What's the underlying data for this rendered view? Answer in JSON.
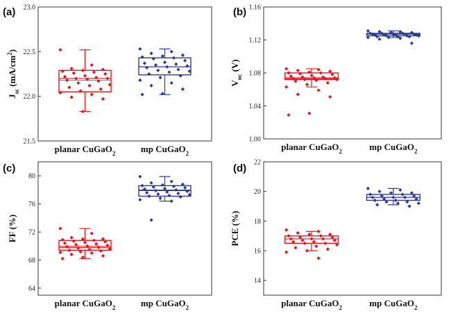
{
  "colors": {
    "planar": "#e8131b",
    "mp": "#2b3a96"
  },
  "chart_data": [
    {
      "panel": "(a)",
      "type": "scatter",
      "ylabel": "J_sc (mA/cm^2)",
      "ylabel_parts": {
        "main": "J",
        "sub": "sc",
        "unit": " (mA/cm",
        "sup": "2",
        "close": ")"
      },
      "ylim": [
        21.5,
        23.0
      ],
      "yticks": [
        "21.5",
        "22.0",
        "22.5",
        "23.0"
      ],
      "categories": [
        "planar CuGaO2",
        "mp CuGaO2"
      ],
      "category_parts": [
        {
          "main": "planar CuGaO",
          "sub": "2"
        },
        {
          "main": "mp CuGaO",
          "sub": "2"
        }
      ],
      "boxes": [
        {
          "q1": 22.05,
          "median": 22.2,
          "q3": 22.29,
          "mean": 22.18,
          "whisker_low": 21.83,
          "whisker_high": 22.52
        },
        {
          "q1": 22.24,
          "median": 22.33,
          "q3": 22.43,
          "mean": 22.33,
          "whisker_low": 22.02,
          "whisker_high": 22.53
        }
      ],
      "series": [
        {
          "values": [
            22.52,
            22.35,
            22.31,
            22.3,
            22.29,
            22.28,
            22.27,
            22.26,
            22.25,
            22.23,
            22.22,
            22.21,
            22.2,
            22.2,
            22.19,
            22.18,
            22.17,
            22.15,
            22.13,
            22.12,
            22.1,
            22.08,
            22.06,
            22.04,
            22.02,
            21.99,
            21.97,
            21.83
          ]
        },
        {
          "values": [
            22.53,
            22.5,
            22.48,
            22.46,
            22.45,
            22.44,
            22.43,
            22.42,
            22.4,
            22.38,
            22.37,
            22.36,
            22.35,
            22.34,
            22.33,
            22.32,
            22.3,
            22.29,
            22.28,
            22.27,
            22.25,
            22.23,
            22.21,
            22.18,
            22.15,
            22.12,
            22.08,
            22.03,
            22.02
          ]
        }
      ]
    },
    {
      "panel": "(b)",
      "type": "scatter",
      "ylabel": "V_oc (V)",
      "ylabel_parts": {
        "main": "V",
        "sub": "oc",
        "unit": " (V)",
        "sup": "",
        "close": ""
      },
      "ylim": [
        1.0,
        1.16
      ],
      "yticks": [
        "1.00",
        "1.04",
        "1.08",
        "1.12",
        "1.16"
      ],
      "categories": [
        "planar CuGaO2",
        "mp CuGaO2"
      ],
      "category_parts": [
        {
          "main": "planar CuGaO",
          "sub": "2"
        },
        {
          "main": "mp CuGaO",
          "sub": "2"
        }
      ],
      "boxes": [
        {
          "q1": 1.072,
          "median": 1.074,
          "q3": 1.08,
          "mean": 1.073,
          "whisker_low": 1.063,
          "whisker_high": 1.085
        },
        {
          "q1": 1.125,
          "median": 1.127,
          "q3": 1.128,
          "mean": 1.127,
          "whisker_low": 1.123,
          "whisker_high": 1.131
        }
      ],
      "series": [
        {
          "values": [
            1.085,
            1.084,
            1.083,
            1.082,
            1.081,
            1.08,
            1.08,
            1.079,
            1.078,
            1.077,
            1.076,
            1.075,
            1.075,
            1.074,
            1.074,
            1.073,
            1.073,
            1.072,
            1.072,
            1.071,
            1.07,
            1.068,
            1.066,
            1.063,
            1.059,
            1.054,
            1.051,
            1.031,
            1.029
          ]
        },
        {
          "values": [
            1.131,
            1.13,
            1.13,
            1.129,
            1.129,
            1.128,
            1.128,
            1.128,
            1.127,
            1.127,
            1.127,
            1.127,
            1.126,
            1.126,
            1.126,
            1.126,
            1.125,
            1.125,
            1.125,
            1.124,
            1.124,
            1.124,
            1.123,
            1.123,
            1.122,
            1.121,
            1.116
          ]
        }
      ]
    },
    {
      "panel": "(c)",
      "type": "scatter",
      "ylabel": "FF (%)",
      "ylabel_parts": {
        "main": "FF (%)",
        "sub": "",
        "unit": "",
        "sup": "",
        "close": ""
      },
      "ylim": [
        63,
        82
      ],
      "yticks": [
        "64",
        "68",
        "72",
        "76",
        "80"
      ],
      "categories": [
        "planar CuGaO2",
        "mp CuGaO2"
      ],
      "category_parts": [
        {
          "main": "planar CuGaO",
          "sub": "2"
        },
        {
          "main": "mp CuGaO",
          "sub": "2"
        }
      ],
      "boxes": [
        {
          "q1": 69.4,
          "median": 69.8,
          "q3": 70.8,
          "mean": 70.0,
          "whisker_low": 68.2,
          "whisker_high": 72.5
        },
        {
          "q1": 77.1,
          "median": 77.9,
          "q3": 78.6,
          "mean": 78.0,
          "whisker_low": 76.4,
          "whisker_high": 79.9
        }
      ],
      "series": [
        {
          "values": [
            72.5,
            71.8,
            71.2,
            71.0,
            71.0,
            70.9,
            70.8,
            70.7,
            70.6,
            70.5,
            70.4,
            70.3,
            70.2,
            70.1,
            70.0,
            69.9,
            69.8,
            69.7,
            69.6,
            69.5,
            69.4,
            69.3,
            69.2,
            69.1,
            69.0,
            68.8,
            68.6,
            68.4,
            68.2
          ]
        },
        {
          "values": [
            79.9,
            79.2,
            79.0,
            78.8,
            78.7,
            78.6,
            78.5,
            78.4,
            78.3,
            78.2,
            78.1,
            78.0,
            77.9,
            77.8,
            77.7,
            77.6,
            77.5,
            77.4,
            77.3,
            77.2,
            77.1,
            77.0,
            76.8,
            76.6,
            76.4,
            73.7
          ]
        }
      ]
    },
    {
      "panel": "(d)",
      "type": "scatter",
      "ylabel": "PCE (%)",
      "ylabel_parts": {
        "main": "PCE (%)",
        "sub": "",
        "unit": "",
        "sup": "",
        "close": ""
      },
      "ylim": [
        13,
        22
      ],
      "yticks": [
        "14",
        "16",
        "18",
        "20",
        "22"
      ],
      "categories": [
        "planar CuGaO2",
        "mp CuGaO2"
      ],
      "category_parts": [
        {
          "main": "planar CuGaO",
          "sub": "2"
        },
        {
          "main": "mp CuGaO",
          "sub": "2"
        }
      ],
      "boxes": [
        {
          "q1": 16.5,
          "median": 16.8,
          "q3": 17.0,
          "mean": 16.8,
          "whisker_low": 16.0,
          "whisker_high": 17.3
        },
        {
          "q1": 19.4,
          "median": 19.6,
          "q3": 19.8,
          "mean": 19.6,
          "whisker_low": 19.1,
          "whisker_high": 20.2
        }
      ],
      "series": [
        {
          "values": [
            17.4,
            17.3,
            17.2,
            17.1,
            17.1,
            17.0,
            17.0,
            16.9,
            16.9,
            16.8,
            16.8,
            16.8,
            16.7,
            16.7,
            16.6,
            16.6,
            16.5,
            16.5,
            16.4,
            16.3,
            16.2,
            16.1,
            16.0,
            15.9,
            15.5
          ]
        },
        {
          "values": [
            20.2,
            20.1,
            20.0,
            19.9,
            19.9,
            19.8,
            19.8,
            19.7,
            19.7,
            19.6,
            19.6,
            19.6,
            19.5,
            19.5,
            19.4,
            19.4,
            19.3,
            19.3,
            19.2,
            19.2,
            19.1,
            19.0
          ]
        }
      ]
    }
  ]
}
